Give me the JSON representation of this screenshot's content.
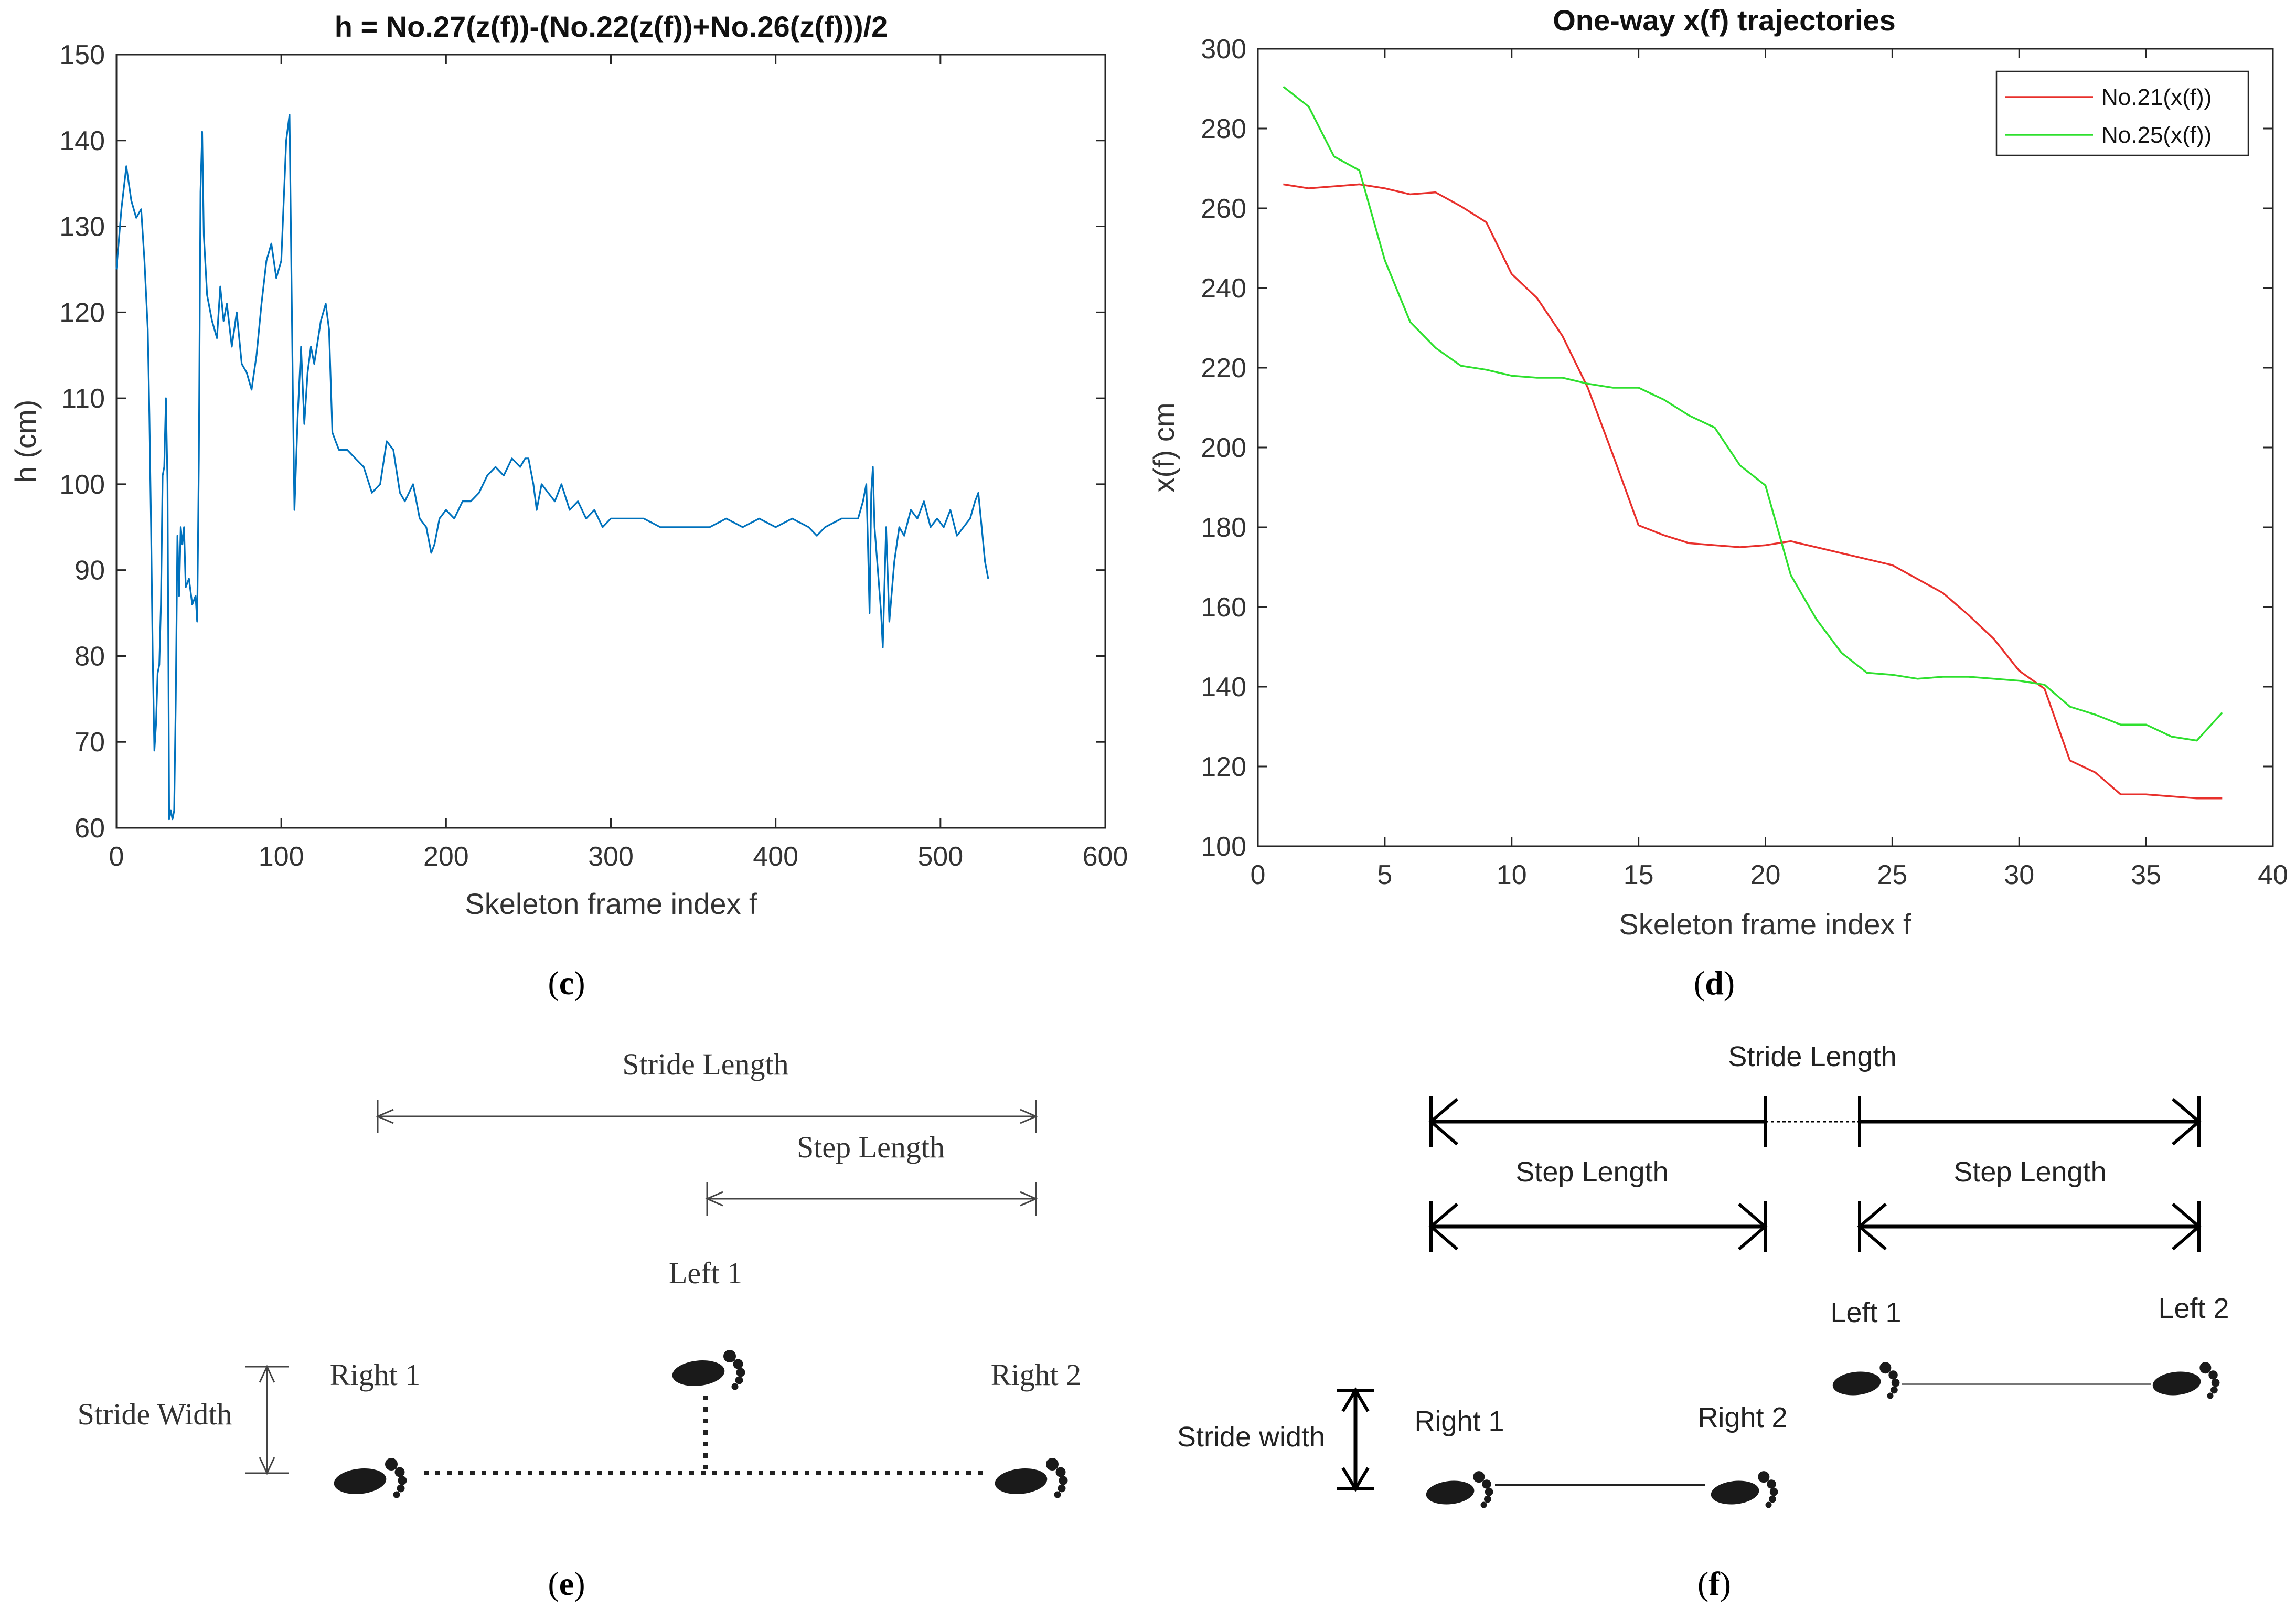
{
  "chart_data": [
    {
      "panel": "c",
      "type": "line",
      "title": "h = No.27(z(f))-(No.22(z(f))+No.26(z(f)))/2",
      "xlabel": "Skeleton frame index f",
      "ylabel": "h (cm)",
      "xlim": [
        0,
        600
      ],
      "ylim": [
        60,
        150
      ],
      "xticks": [
        0,
        100,
        200,
        300,
        400,
        500,
        600
      ],
      "yticks": [
        60,
        70,
        80,
        90,
        100,
        110,
        120,
        130,
        140,
        150
      ],
      "grid": false,
      "series": [
        {
          "color": "#0072BD",
          "points": [
            [
              0,
              125
            ],
            [
              3,
              132
            ],
            [
              6,
              137
            ],
            [
              9,
              133
            ],
            [
              12,
              131
            ],
            [
              15,
              132
            ],
            [
              17,
              126
            ],
            [
              19,
              118
            ],
            [
              20,
              108
            ],
            [
              21,
              95
            ],
            [
              22,
              80
            ],
            [
              23,
              69
            ],
            [
              24,
              72
            ],
            [
              25,
              78
            ],
            [
              26,
              79
            ],
            [
              27,
              86
            ],
            [
              28,
              101
            ],
            [
              29,
              102
            ],
            [
              30,
              110
            ],
            [
              31,
              100
            ],
            [
              32,
              61
            ],
            [
              33,
              62
            ],
            [
              34,
              61
            ],
            [
              35,
              62
            ],
            [
              36,
              75
            ],
            [
              37,
              94
            ],
            [
              38,
              87
            ],
            [
              39,
              95
            ],
            [
              40,
              93
            ],
            [
              41,
              95
            ],
            [
              42,
              88
            ],
            [
              44,
              89
            ],
            [
              46,
              86
            ],
            [
              48,
              87
            ],
            [
              49,
              84
            ],
            [
              50,
              103
            ],
            [
              51,
              134
            ],
            [
              52,
              141
            ],
            [
              53,
              129
            ],
            [
              55,
              122
            ],
            [
              58,
              119
            ],
            [
              61,
              117
            ],
            [
              63,
              123
            ],
            [
              65,
              119
            ],
            [
              67,
              121
            ],
            [
              70,
              116
            ],
            [
              73,
              120
            ],
            [
              76,
              114
            ],
            [
              79,
              113
            ],
            [
              82,
              111
            ],
            [
              85,
              115
            ],
            [
              88,
              121
            ],
            [
              91,
              126
            ],
            [
              94,
              128
            ],
            [
              97,
              124
            ],
            [
              100,
              126
            ],
            [
              103,
              140
            ],
            [
              105,
              143
            ],
            [
              107,
              111
            ],
            [
              108,
              97
            ],
            [
              110,
              108
            ],
            [
              112,
              116
            ],
            [
              114,
              107
            ],
            [
              116,
              113
            ],
            [
              118,
              116
            ],
            [
              120,
              114
            ],
            [
              124,
              119
            ],
            [
              127,
              121
            ],
            [
              129,
              118
            ],
            [
              131,
              106
            ],
            [
              133,
              105
            ],
            [
              135,
              104
            ],
            [
              140,
              104
            ],
            [
              145,
              103
            ],
            [
              150,
              102
            ],
            [
              155,
              99
            ],
            [
              160,
              100
            ],
            [
              164,
              105
            ],
            [
              168,
              104
            ],
            [
              172,
              99
            ],
            [
              175,
              98
            ],
            [
              180,
              100
            ],
            [
              184,
              96
            ],
            [
              188,
              95
            ],
            [
              191,
              92
            ],
            [
              193,
              93
            ],
            [
              196,
              96
            ],
            [
              200,
              97
            ],
            [
              205,
              96
            ],
            [
              210,
              98
            ],
            [
              215,
              98
            ],
            [
              220,
              99
            ],
            [
              225,
              101
            ],
            [
              230,
              102
            ],
            [
              235,
              101
            ],
            [
              240,
              103
            ],
            [
              245,
              102
            ],
            [
              248,
              103
            ],
            [
              250,
              103
            ],
            [
              253,
              100
            ],
            [
              255,
              97
            ],
            [
              258,
              100
            ],
            [
              262,
              99
            ],
            [
              266,
              98
            ],
            [
              270,
              100
            ],
            [
              275,
              97
            ],
            [
              280,
              98
            ],
            [
              285,
              96
            ],
            [
              290,
              97
            ],
            [
              295,
              95
            ],
            [
              300,
              96
            ],
            [
              310,
              96
            ],
            [
              320,
              96
            ],
            [
              330,
              95
            ],
            [
              340,
              95
            ],
            [
              350,
              95
            ],
            [
              360,
              95
            ],
            [
              370,
              96
            ],
            [
              380,
              95
            ],
            [
              390,
              96
            ],
            [
              400,
              95
            ],
            [
              410,
              96
            ],
            [
              420,
              95
            ],
            [
              425,
              94
            ],
            [
              430,
              95
            ],
            [
              440,
              96
            ],
            [
              450,
              96
            ],
            [
              453,
              98
            ],
            [
              455,
              100
            ],
            [
              456,
              93
            ],
            [
              457,
              85
            ],
            [
              458,
              99
            ],
            [
              459,
              102
            ],
            [
              460,
              95
            ],
            [
              462,
              90
            ],
            [
              464,
              85
            ],
            [
              465,
              81
            ],
            [
              467,
              95
            ],
            [
              469,
              84
            ],
            [
              472,
              91
            ],
            [
              475,
              95
            ],
            [
              478,
              94
            ],
            [
              482,
              97
            ],
            [
              486,
              96
            ],
            [
              490,
              98
            ],
            [
              494,
              95
            ],
            [
              498,
              96
            ],
            [
              502,
              95
            ],
            [
              506,
              97
            ],
            [
              510,
              94
            ],
            [
              514,
              95
            ],
            [
              518,
              96
            ],
            [
              521,
              98
            ],
            [
              523,
              99
            ],
            [
              525,
              95
            ],
            [
              527,
              91
            ],
            [
              529,
              89
            ]
          ]
        }
      ]
    },
    {
      "panel": "d",
      "type": "line",
      "title": "One-way x(f) trajectories",
      "xlabel": "Skeleton frame index f",
      "ylabel": "x(f) cm",
      "xlim": [
        0,
        40
      ],
      "ylim": [
        100,
        300
      ],
      "xticks": [
        0,
        5,
        10,
        15,
        20,
        25,
        30,
        35,
        40
      ],
      "yticks": [
        100,
        120,
        140,
        160,
        180,
        200,
        220,
        240,
        260,
        280,
        300
      ],
      "grid": false,
      "legend_position": "top-right",
      "series": [
        {
          "name": "No.21(x(f))",
          "color": "#E8302C",
          "x": [
            1,
            2,
            3,
            4,
            5,
            6,
            7,
            8,
            9,
            10,
            11,
            12,
            13,
            14,
            15,
            16,
            17,
            18,
            19,
            20,
            21,
            22,
            23,
            24,
            25,
            26,
            27,
            28,
            29,
            30,
            31,
            32,
            33,
            34,
            35,
            36,
            37,
            38
          ],
          "values": [
            266,
            265,
            265.5,
            266,
            265,
            263.5,
            264,
            260.5,
            256.5,
            243.5,
            237.5,
            228,
            215,
            198,
            180.5,
            178,
            176,
            175.5,
            175,
            175.5,
            176.5,
            175,
            173.5,
            172,
            170.5,
            167,
            163.5,
            158,
            152,
            144,
            139.5,
            121.5,
            118.5,
            113,
            113,
            112.5,
            112,
            112
          ]
        },
        {
          "name": "No.25(x(f))",
          "color": "#2FE02F",
          "x": [
            1,
            2,
            3,
            4,
            5,
            6,
            7,
            8,
            9,
            10,
            11,
            12,
            13,
            14,
            15,
            16,
            17,
            18,
            19,
            20,
            21,
            22,
            23,
            24,
            25,
            26,
            27,
            28,
            29,
            30,
            31,
            32,
            33,
            34,
            35,
            36,
            37,
            38
          ],
          "values": [
            290.5,
            285.5,
            273,
            269.5,
            247,
            231.5,
            225,
            220.5,
            219.5,
            218,
            217.5,
            217.5,
            216,
            215,
            215,
            212,
            208,
            205,
            195.5,
            190.5,
            168,
            157,
            148.5,
            143.5,
            143,
            142,
            142.5,
            142.5,
            142,
            141.5,
            140.5,
            135,
            133,
            130.5,
            130.5,
            127.5,
            126.5,
            133.5
          ]
        }
      ]
    }
  ],
  "captions": {
    "c": "c",
    "d": "d",
    "e": "e",
    "f": "f"
  },
  "diagram_e": {
    "stride_length": "Stride Length",
    "step_length": "Step Length",
    "left1": "Left 1",
    "right1": "Right 1",
    "right2": "Right 2",
    "stride_width": "Stride Width"
  },
  "diagram_f": {
    "stride_length": "Stride Length",
    "step_length_a": "Step Length",
    "step_length_b": "Step Length",
    "left1": "Left 1",
    "left2": "Left 2",
    "right1": "Right 1",
    "right2": "Right 2",
    "stride_width": "Stride width"
  },
  "icons": {
    "footprint": "footprint-icon"
  }
}
